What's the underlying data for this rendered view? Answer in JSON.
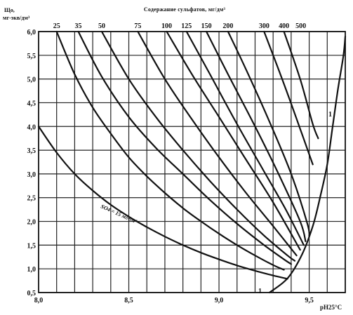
{
  "chart_data": {
    "type": "line",
    "title": "Содержание сульфатов, мг/дм³",
    "ylabel_line1": "Що,",
    "ylabel_line2": "мг-экв/дм³",
    "xlabel": "pH25°C",
    "xlim": [
      8.0,
      9.7
    ],
    "ylim": [
      0.5,
      6.0
    ],
    "x_ticks": [
      "8,0",
      "8,5",
      "9,0",
      "9,5"
    ],
    "x_tick_values": [
      8.0,
      8.5,
      9.0,
      9.5
    ],
    "y_ticks": [
      "0,5",
      "1,0",
      "1,5",
      "2,0",
      "2,5",
      "3,0",
      "3,5",
      "4,0",
      "4,5",
      "5,0",
      "5,5",
      "6,0"
    ],
    "y_tick_values": [
      0.5,
      1.0,
      1.5,
      2.0,
      2.5,
      3.0,
      3.5,
      4.0,
      4.5,
      5.0,
      5.5,
      6.0
    ],
    "top_labels": [
      "25",
      "35",
      "50",
      "75",
      "100",
      "125",
      "150",
      "200",
      "300",
      "400",
      "500"
    ],
    "curve_annotation": "SO4 = 15 мг/дм³",
    "boundary_label_top": "1",
    "boundary_label_bottom": "1",
    "grid": true,
    "series": [
      {
        "label": "15",
        "points": [
          [
            8.0,
            4.0
          ],
          [
            8.1,
            3.45
          ],
          [
            8.2,
            3.0
          ],
          [
            8.3,
            2.65
          ],
          [
            8.4,
            2.35
          ],
          [
            8.5,
            2.1
          ],
          [
            8.6,
            1.88
          ],
          [
            8.7,
            1.68
          ],
          [
            8.8,
            1.5
          ],
          [
            8.9,
            1.34
          ],
          [
            9.0,
            1.2
          ],
          [
            9.1,
            1.07
          ],
          [
            9.2,
            0.96
          ],
          [
            9.3,
            0.86
          ],
          [
            9.38,
            0.79
          ]
        ]
      },
      {
        "label": "25",
        "points": [
          [
            8.1,
            6.0
          ],
          [
            8.2,
            5.1
          ],
          [
            8.3,
            4.4
          ],
          [
            8.4,
            3.85
          ],
          [
            8.5,
            3.35
          ],
          [
            8.6,
            2.95
          ],
          [
            8.7,
            2.6
          ],
          [
            8.8,
            2.28
          ],
          [
            8.9,
            2.0
          ],
          [
            9.0,
            1.74
          ],
          [
            9.1,
            1.5
          ],
          [
            9.2,
            1.28
          ],
          [
            9.3,
            1.08
          ],
          [
            9.36,
            0.98
          ]
        ]
      },
      {
        "label": "35",
        "points": [
          [
            8.22,
            6.0
          ],
          [
            8.35,
            5.05
          ],
          [
            8.5,
            4.2
          ],
          [
            8.65,
            3.55
          ],
          [
            8.8,
            3.0
          ],
          [
            8.95,
            2.45
          ],
          [
            9.1,
            1.95
          ],
          [
            9.25,
            1.5
          ],
          [
            9.36,
            1.2
          ],
          [
            9.4,
            1.1
          ]
        ]
      },
      {
        "label": "50",
        "points": [
          [
            8.35,
            6.0
          ],
          [
            8.5,
            5.0
          ],
          [
            8.65,
            4.2
          ],
          [
            8.8,
            3.5
          ],
          [
            8.95,
            2.85
          ],
          [
            9.1,
            2.25
          ],
          [
            9.25,
            1.7
          ],
          [
            9.38,
            1.28
          ],
          [
            9.42,
            1.17
          ]
        ]
      },
      {
        "label": "75",
        "points": [
          [
            8.55,
            6.0
          ],
          [
            8.7,
            5.0
          ],
          [
            8.85,
            4.15
          ],
          [
            9.0,
            3.35
          ],
          [
            9.15,
            2.6
          ],
          [
            9.3,
            1.9
          ],
          [
            9.43,
            1.28
          ]
        ]
      },
      {
        "label": "100",
        "points": [
          [
            8.71,
            6.0
          ],
          [
            8.85,
            5.1
          ],
          [
            9.0,
            4.2
          ],
          [
            9.15,
            3.3
          ],
          [
            9.3,
            2.4
          ],
          [
            9.45,
            1.4
          ]
        ]
      },
      {
        "label": "125",
        "points": [
          [
            8.82,
            6.0
          ],
          [
            8.95,
            5.1
          ],
          [
            9.1,
            4.05
          ],
          [
            9.25,
            3.05
          ],
          [
            9.37,
            2.25
          ],
          [
            9.47,
            1.5
          ]
        ]
      },
      {
        "label": "150",
        "points": [
          [
            8.93,
            6.0
          ],
          [
            9.05,
            5.1
          ],
          [
            9.2,
            4.0
          ],
          [
            9.33,
            3.0
          ],
          [
            9.45,
            2.0
          ],
          [
            9.48,
            1.58
          ]
        ]
      },
      {
        "label": "200",
        "points": [
          [
            9.05,
            6.0
          ],
          [
            9.15,
            5.2
          ],
          [
            9.28,
            4.1
          ],
          [
            9.4,
            3.0
          ],
          [
            9.49,
            1.95
          ],
          [
            9.5,
            1.68
          ]
        ]
      },
      {
        "label": "300",
        "points": [
          [
            9.25,
            6.0
          ],
          [
            9.35,
            5.0
          ],
          [
            9.45,
            3.95
          ],
          [
            9.52,
            3.2
          ]
        ]
      },
      {
        "label": "400",
        "points": [
          [
            9.36,
            6.0
          ],
          [
            9.45,
            5.0
          ],
          [
            9.52,
            4.05
          ],
          [
            9.55,
            3.75
          ]
        ]
      },
      {
        "label": "boundary_1",
        "points": [
          [
            9.28,
            0.5
          ],
          [
            9.38,
            0.8
          ],
          [
            9.46,
            1.3
          ],
          [
            9.52,
            1.9
          ],
          [
            9.56,
            2.5
          ],
          [
            9.6,
            3.2
          ],
          [
            9.63,
            4.0
          ],
          [
            9.66,
            4.8
          ],
          [
            9.69,
            5.5
          ],
          [
            9.7,
            5.9
          ]
        ]
      }
    ]
  }
}
